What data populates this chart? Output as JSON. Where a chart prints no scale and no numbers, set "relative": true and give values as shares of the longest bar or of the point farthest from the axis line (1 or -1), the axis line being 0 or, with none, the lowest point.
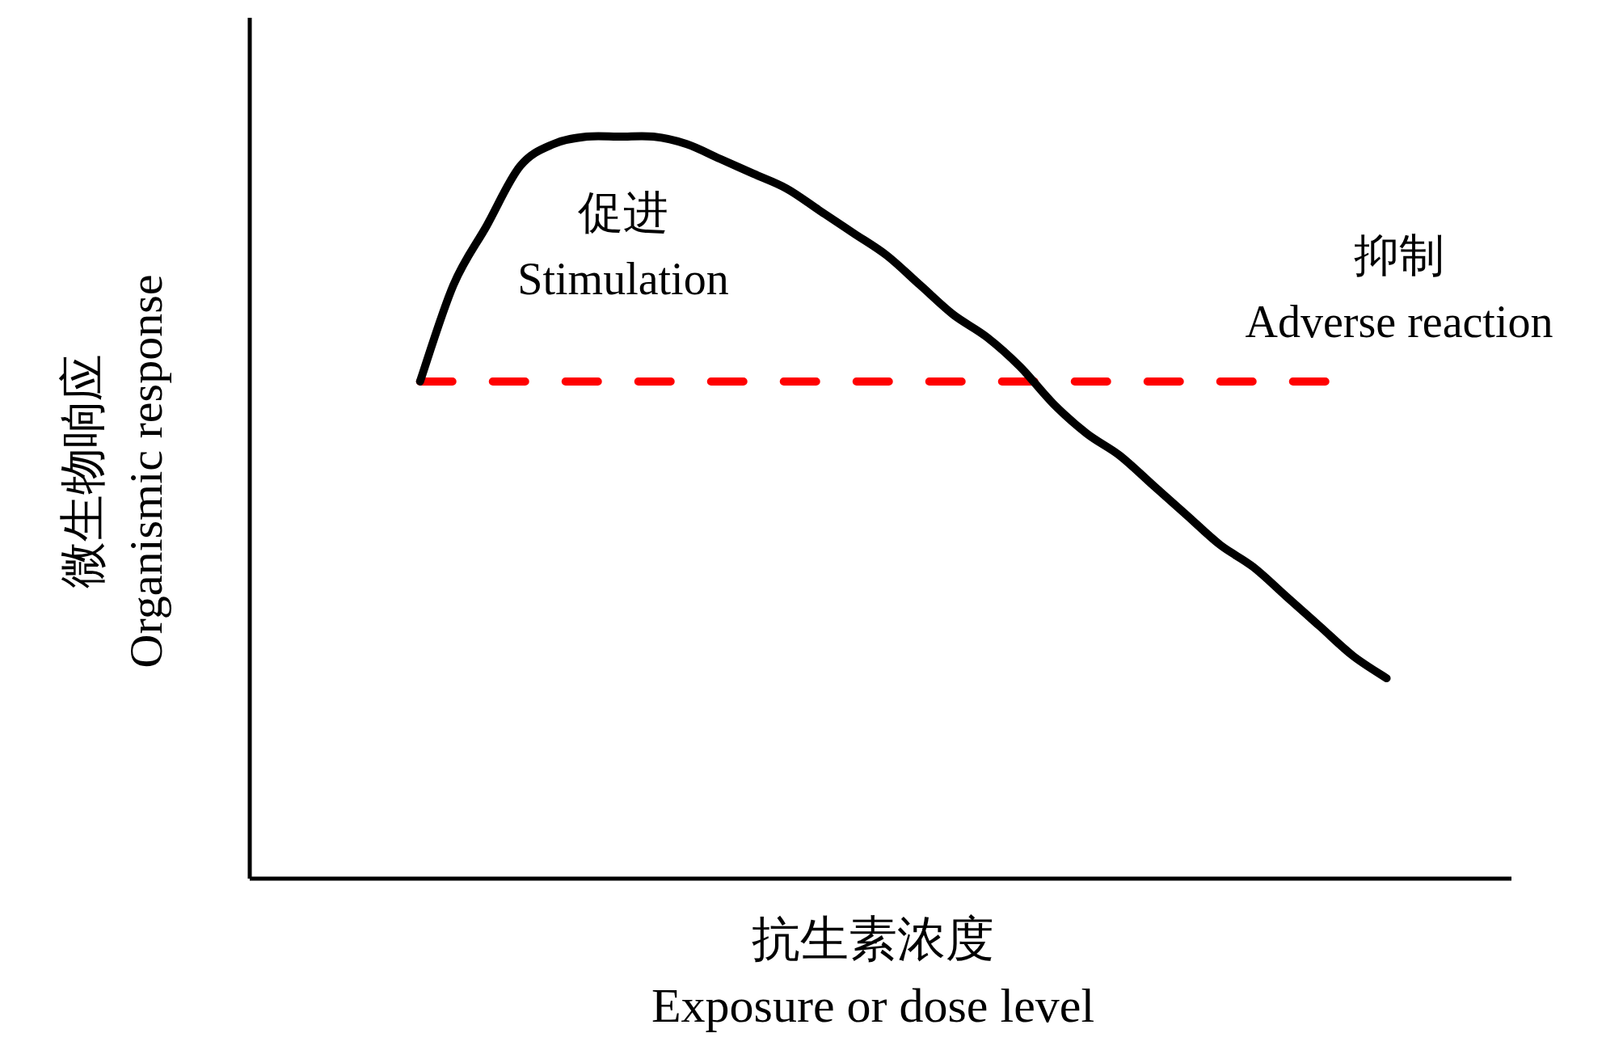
{
  "chart_data": {
    "type": "line",
    "relative": true,
    "xlabel": "抗生素浓度\nExposure or dose level",
    "ylabel": "微生物响应\nOrganismic response",
    "categories": [
      null,
      null,
      null,
      null,
      null,
      null,
      null,
      null,
      null,
      null,
      null,
      null,
      null,
      null,
      null,
      null,
      null,
      null,
      null,
      null,
      null,
      null,
      null,
      null,
      null,
      null,
      null,
      null,
      null,
      null
    ],
    "series": [
      {
        "color": "#000000",
        "line_style": "solid",
        "values": [
          0.67,
          0.8,
          0.88,
          0.96,
          0.99,
          1.0,
          1.0,
          1.0,
          0.99,
          0.97,
          0.95,
          0.93,
          0.9,
          0.87,
          0.84,
          0.8,
          0.76,
          0.73,
          0.69,
          0.64,
          0.6,
          0.57,
          0.53,
          0.49,
          0.45,
          0.42,
          0.38,
          0.34,
          0.3,
          0.27
        ]
      }
    ],
    "ref_lines": [
      {
        "axis": "y",
        "value": 0.67,
        "color": "#ff0000",
        "line_style": "dashed"
      }
    ],
    "annotations": [
      "促进\nStimulation",
      "抑制\nAdverse reaction"
    ]
  }
}
